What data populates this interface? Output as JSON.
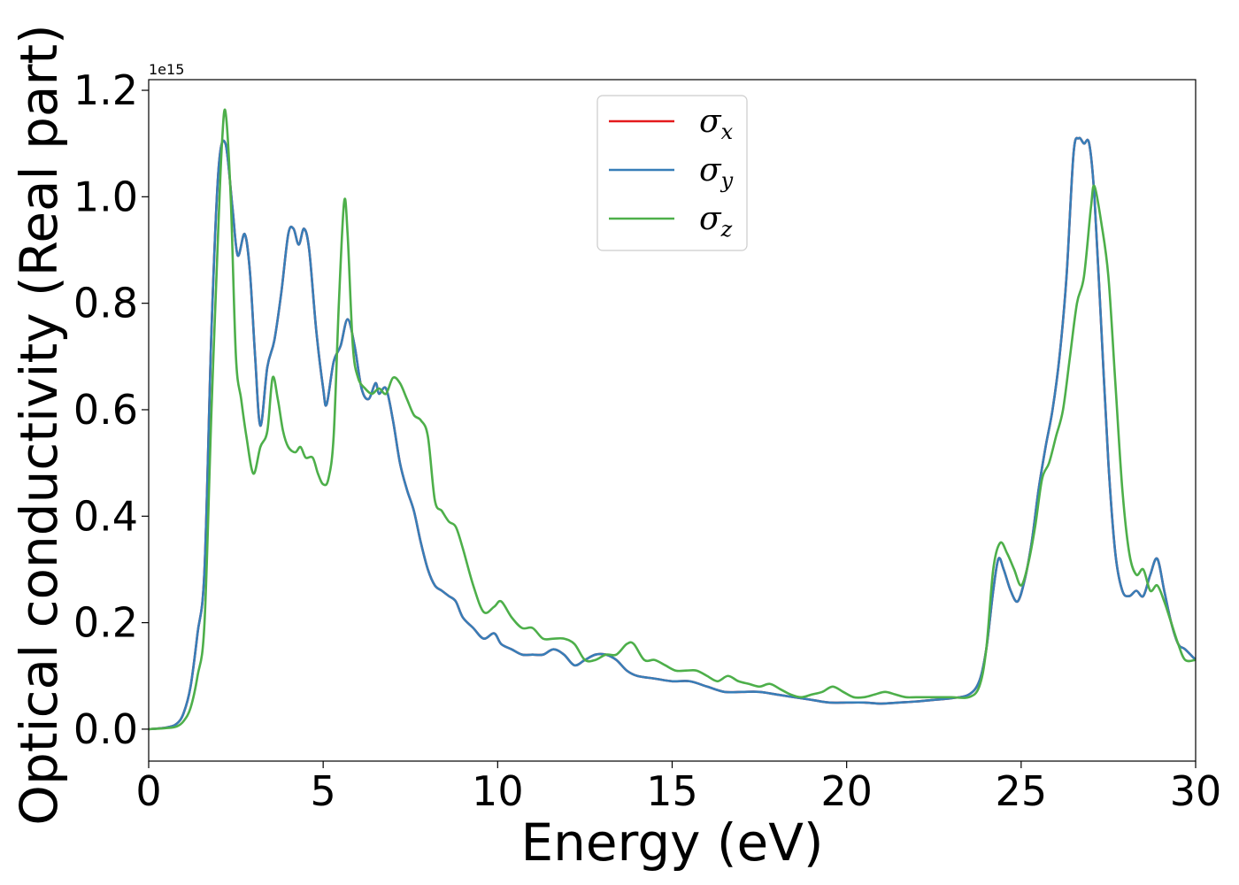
{
  "chart_data": {
    "type": "line",
    "title": "",
    "xlabel": "Energy (eV)",
    "ylabel": "Optical conductivity (Real part)",
    "y_offset_label": "1e15",
    "xlim": [
      0,
      30
    ],
    "ylim": [
      -0.06,
      1.22
    ],
    "xticks": [
      0,
      5,
      10,
      15,
      20,
      25,
      30
    ],
    "xtick_labels": [
      "0",
      "5",
      "10",
      "15",
      "20",
      "25",
      "30"
    ],
    "yticks": [
      0.0,
      0.2,
      0.4,
      0.6,
      0.8,
      1.0,
      1.2
    ],
    "ytick_labels": [
      "0.0",
      "0.2",
      "0.4",
      "0.6",
      "0.8",
      "1.0",
      "1.2"
    ],
    "grid": false,
    "legend_position": "top-center",
    "series": [
      {
        "name": "σx",
        "legend_base": "σ",
        "legend_sub": "x",
        "color": "#e41a1c",
        "x": [
          0,
          0.5,
          0.8,
          1.0,
          1.2,
          1.4,
          1.6,
          1.8,
          2.0,
          2.2,
          2.4,
          2.55,
          2.75,
          2.9,
          3.05,
          3.2,
          3.4,
          3.6,
          3.8,
          4.0,
          4.15,
          4.3,
          4.45,
          4.6,
          4.8,
          5.0,
          5.1,
          5.3,
          5.5,
          5.7,
          5.9,
          6.1,
          6.3,
          6.5,
          6.6,
          6.8,
          7.0,
          7.2,
          7.4,
          7.6,
          7.8,
          8.0,
          8.2,
          8.4,
          8.6,
          8.8,
          9.0,
          9.3,
          9.6,
          9.9,
          10.1,
          10.4,
          10.7,
          11.0,
          11.3,
          11.6,
          11.9,
          12.2,
          12.5,
          12.8,
          13.1,
          13.4,
          13.7,
          14.0,
          14.5,
          15.0,
          15.5,
          16.0,
          16.5,
          17.0,
          17.5,
          18.0,
          18.5,
          19.0,
          19.5,
          20.0,
          20.5,
          21.0,
          21.5,
          22.0,
          22.5,
          23.0,
          23.5,
          23.8,
          24.0,
          24.2,
          24.35,
          24.5,
          24.7,
          24.9,
          25.1,
          25.3,
          25.5,
          25.7,
          25.9,
          26.1,
          26.3,
          26.5,
          26.65,
          26.8,
          26.95,
          27.1,
          27.3,
          27.5,
          27.7,
          27.9,
          28.1,
          28.3,
          28.5,
          28.7,
          28.9,
          29.1,
          29.3,
          29.5,
          29.7,
          30.0
        ],
        "values": [
          0.0,
          0.003,
          0.01,
          0.03,
          0.08,
          0.18,
          0.3,
          0.75,
          1.05,
          1.1,
          0.98,
          0.89,
          0.93,
          0.86,
          0.7,
          0.57,
          0.68,
          0.73,
          0.82,
          0.93,
          0.94,
          0.91,
          0.94,
          0.9,
          0.75,
          0.64,
          0.61,
          0.69,
          0.72,
          0.77,
          0.72,
          0.64,
          0.62,
          0.65,
          0.63,
          0.64,
          0.58,
          0.5,
          0.45,
          0.41,
          0.35,
          0.3,
          0.27,
          0.26,
          0.25,
          0.24,
          0.21,
          0.19,
          0.17,
          0.18,
          0.16,
          0.15,
          0.14,
          0.14,
          0.14,
          0.15,
          0.14,
          0.12,
          0.13,
          0.14,
          0.14,
          0.13,
          0.11,
          0.1,
          0.095,
          0.09,
          0.09,
          0.08,
          0.07,
          0.07,
          0.07,
          0.065,
          0.06,
          0.055,
          0.05,
          0.05,
          0.05,
          0.048,
          0.05,
          0.052,
          0.055,
          0.058,
          0.065,
          0.09,
          0.15,
          0.26,
          0.32,
          0.3,
          0.26,
          0.24,
          0.28,
          0.35,
          0.45,
          0.53,
          0.6,
          0.7,
          0.85,
          1.08,
          1.11,
          1.1,
          1.1,
          1.0,
          0.75,
          0.5,
          0.33,
          0.26,
          0.25,
          0.26,
          0.25,
          0.29,
          0.32,
          0.26,
          0.2,
          0.16,
          0.15,
          0.13
        ]
      },
      {
        "name": "σy",
        "legend_base": "σ",
        "legend_sub": "y",
        "color": "#377eb8",
        "x": [
          0,
          0.5,
          0.8,
          1.0,
          1.2,
          1.4,
          1.6,
          1.8,
          2.0,
          2.2,
          2.4,
          2.55,
          2.75,
          2.9,
          3.05,
          3.2,
          3.4,
          3.6,
          3.8,
          4.0,
          4.15,
          4.3,
          4.45,
          4.6,
          4.8,
          5.0,
          5.1,
          5.3,
          5.5,
          5.7,
          5.9,
          6.1,
          6.3,
          6.5,
          6.6,
          6.8,
          7.0,
          7.2,
          7.4,
          7.6,
          7.8,
          8.0,
          8.2,
          8.4,
          8.6,
          8.8,
          9.0,
          9.3,
          9.6,
          9.9,
          10.1,
          10.4,
          10.7,
          11.0,
          11.3,
          11.6,
          11.9,
          12.2,
          12.5,
          12.8,
          13.1,
          13.4,
          13.7,
          14.0,
          14.5,
          15.0,
          15.5,
          16.0,
          16.5,
          17.0,
          17.5,
          18.0,
          18.5,
          19.0,
          19.5,
          20.0,
          20.5,
          21.0,
          21.5,
          22.0,
          22.5,
          23.0,
          23.5,
          23.8,
          24.0,
          24.2,
          24.35,
          24.5,
          24.7,
          24.9,
          25.1,
          25.3,
          25.5,
          25.7,
          25.9,
          26.1,
          26.3,
          26.5,
          26.65,
          26.8,
          26.95,
          27.1,
          27.3,
          27.5,
          27.7,
          27.9,
          28.1,
          28.3,
          28.5,
          28.7,
          28.9,
          29.1,
          29.3,
          29.5,
          29.7,
          30.0
        ],
        "values": [
          0.0,
          0.003,
          0.01,
          0.03,
          0.08,
          0.18,
          0.3,
          0.75,
          1.05,
          1.1,
          0.98,
          0.89,
          0.93,
          0.86,
          0.7,
          0.57,
          0.68,
          0.73,
          0.82,
          0.93,
          0.94,
          0.91,
          0.94,
          0.9,
          0.75,
          0.64,
          0.61,
          0.69,
          0.72,
          0.77,
          0.72,
          0.64,
          0.62,
          0.65,
          0.63,
          0.64,
          0.58,
          0.5,
          0.45,
          0.41,
          0.35,
          0.3,
          0.27,
          0.26,
          0.25,
          0.24,
          0.21,
          0.19,
          0.17,
          0.18,
          0.16,
          0.15,
          0.14,
          0.14,
          0.14,
          0.15,
          0.14,
          0.12,
          0.13,
          0.14,
          0.14,
          0.13,
          0.11,
          0.1,
          0.095,
          0.09,
          0.09,
          0.08,
          0.07,
          0.07,
          0.07,
          0.065,
          0.06,
          0.055,
          0.05,
          0.05,
          0.05,
          0.048,
          0.05,
          0.052,
          0.055,
          0.058,
          0.065,
          0.09,
          0.15,
          0.26,
          0.32,
          0.3,
          0.26,
          0.24,
          0.28,
          0.35,
          0.45,
          0.53,
          0.6,
          0.7,
          0.85,
          1.08,
          1.11,
          1.1,
          1.1,
          1.0,
          0.75,
          0.5,
          0.33,
          0.26,
          0.25,
          0.26,
          0.25,
          0.29,
          0.32,
          0.26,
          0.2,
          0.16,
          0.15,
          0.13
        ]
      },
      {
        "name": "σz",
        "legend_base": "σ",
        "legend_sub": "z",
        "color": "#4daf4a",
        "x": [
          0,
          0.5,
          0.8,
          1.0,
          1.2,
          1.4,
          1.6,
          1.8,
          2.0,
          2.1,
          2.2,
          2.35,
          2.5,
          2.65,
          2.8,
          3.0,
          3.2,
          3.4,
          3.55,
          3.7,
          3.85,
          4.0,
          4.2,
          4.35,
          4.5,
          4.7,
          4.85,
          5.0,
          5.15,
          5.3,
          5.45,
          5.6,
          5.7,
          5.85,
          6.0,
          6.2,
          6.4,
          6.6,
          6.8,
          7.0,
          7.2,
          7.4,
          7.6,
          7.8,
          8.0,
          8.2,
          8.4,
          8.6,
          8.8,
          9.0,
          9.3,
          9.6,
          9.9,
          10.1,
          10.4,
          10.7,
          11.0,
          11.3,
          11.6,
          11.9,
          12.2,
          12.5,
          12.8,
          13.1,
          13.4,
          13.7,
          13.9,
          14.2,
          14.5,
          14.8,
          15.1,
          15.4,
          15.7,
          16.0,
          16.3,
          16.6,
          16.9,
          17.2,
          17.5,
          17.8,
          18.1,
          18.4,
          18.7,
          19.0,
          19.3,
          19.6,
          19.9,
          20.2,
          20.5,
          20.8,
          21.1,
          21.4,
          21.7,
          22.0,
          22.5,
          23.0,
          23.5,
          23.8,
          24.0,
          24.2,
          24.4,
          24.6,
          24.8,
          25.0,
          25.2,
          25.4,
          25.6,
          25.8,
          26.0,
          26.2,
          26.4,
          26.6,
          26.8,
          27.0,
          27.1,
          27.3,
          27.5,
          27.7,
          27.9,
          28.1,
          28.3,
          28.5,
          28.7,
          28.9,
          29.1,
          29.3,
          29.5,
          29.7,
          30.0
        ],
        "values": [
          0.0,
          0.002,
          0.005,
          0.015,
          0.04,
          0.1,
          0.2,
          0.6,
          0.95,
          1.1,
          1.16,
          1.0,
          0.7,
          0.62,
          0.55,
          0.48,
          0.53,
          0.56,
          0.66,
          0.62,
          0.56,
          0.53,
          0.52,
          0.53,
          0.51,
          0.51,
          0.48,
          0.46,
          0.47,
          0.55,
          0.8,
          0.99,
          0.93,
          0.72,
          0.66,
          0.64,
          0.63,
          0.64,
          0.63,
          0.66,
          0.65,
          0.62,
          0.59,
          0.58,
          0.55,
          0.43,
          0.41,
          0.39,
          0.38,
          0.34,
          0.27,
          0.22,
          0.23,
          0.24,
          0.21,
          0.19,
          0.19,
          0.17,
          0.17,
          0.17,
          0.16,
          0.13,
          0.13,
          0.14,
          0.14,
          0.16,
          0.16,
          0.13,
          0.13,
          0.12,
          0.11,
          0.11,
          0.11,
          0.1,
          0.09,
          0.1,
          0.09,
          0.085,
          0.08,
          0.085,
          0.075,
          0.065,
          0.06,
          0.065,
          0.07,
          0.08,
          0.07,
          0.06,
          0.06,
          0.065,
          0.07,
          0.065,
          0.06,
          0.06,
          0.06,
          0.06,
          0.06,
          0.08,
          0.15,
          0.3,
          0.35,
          0.33,
          0.3,
          0.27,
          0.31,
          0.38,
          0.47,
          0.5,
          0.55,
          0.6,
          0.7,
          0.8,
          0.85,
          0.98,
          1.02,
          0.95,
          0.85,
          0.65,
          0.45,
          0.33,
          0.29,
          0.3,
          0.26,
          0.27,
          0.24,
          0.2,
          0.16,
          0.13,
          0.13
        ]
      }
    ]
  }
}
